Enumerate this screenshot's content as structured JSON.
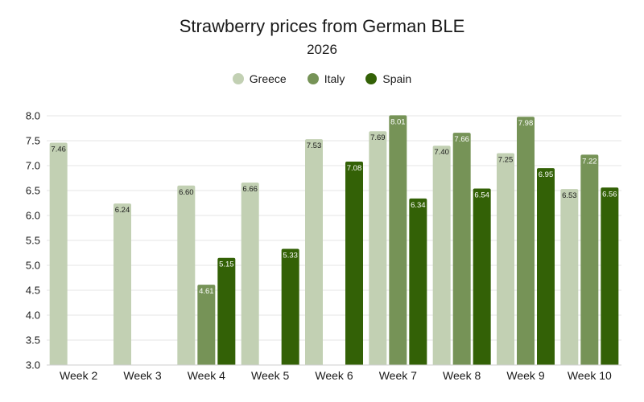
{
  "chart_data": {
    "type": "bar",
    "title": "Strawberry prices from German BLE",
    "subtitle": "2026",
    "xlabel": "",
    "ylabel": "",
    "ylim": [
      3.0,
      8.0
    ],
    "yticks": [
      "3.0",
      "3.5",
      "4.0",
      "4.5",
      "5.0",
      "5.5",
      "6.0",
      "6.5",
      "7.0",
      "7.5",
      "8.0"
    ],
    "grid": true,
    "legend_position": "top-center",
    "categories": [
      "Week 2",
      "Week 3",
      "Week 4",
      "Week 5",
      "Week 6",
      "Week 7",
      "Week 8",
      "Week 9",
      "Week 10"
    ],
    "series": [
      {
        "name": "Greece",
        "color": "#c2d0b3",
        "values": [
          7.46,
          6.24,
          6.6,
          6.66,
          7.53,
          7.69,
          7.4,
          7.25,
          6.53
        ]
      },
      {
        "name": "Italy",
        "color": "#769357",
        "values": [
          null,
          null,
          4.61,
          null,
          null,
          8.01,
          7.66,
          7.98,
          7.22
        ]
      },
      {
        "name": "Spain",
        "color": "#336106",
        "values": [
          null,
          null,
          5.15,
          5.33,
          7.08,
          6.34,
          6.54,
          6.95,
          6.56
        ]
      }
    ]
  }
}
